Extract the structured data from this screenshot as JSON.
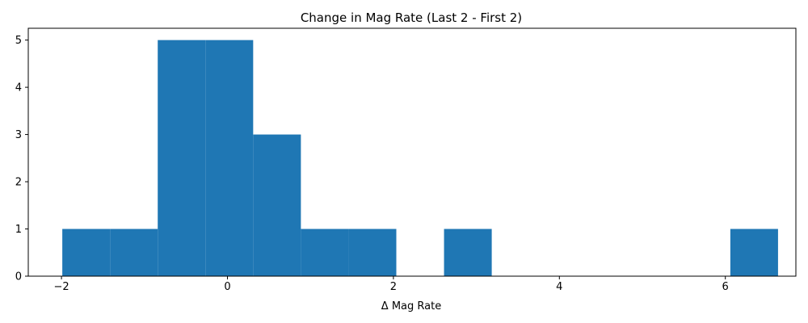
{
  "chart_data": {
    "type": "bar",
    "title": "Change in Mag Rate (Last 2 - First 2)",
    "xlabel": "Δ Mag Rate",
    "ylabel": "",
    "bin_edges": [
      -1.99,
      -1.415,
      -0.84,
      -0.265,
      0.31,
      0.885,
      1.46,
      2.035,
      2.61,
      3.185,
      3.76,
      4.335,
      4.91,
      5.485,
      6.06,
      6.635
    ],
    "values": [
      1,
      1,
      5,
      5,
      3,
      1,
      1,
      0,
      1,
      0,
      0,
      0,
      0,
      0,
      1
    ],
    "xlim": [
      -2.4,
      6.85
    ],
    "ylim": [
      0,
      5.25
    ],
    "xticks": [
      -2,
      0,
      2,
      4,
      6
    ],
    "xtick_labels": [
      "−2",
      "0",
      "2",
      "4",
      "6"
    ],
    "yticks": [
      0,
      1,
      2,
      3,
      4,
      5
    ],
    "ytick_labels": [
      "0",
      "1",
      "2",
      "3",
      "4",
      "5"
    ],
    "bar_color": "#1f77b4",
    "grid": false,
    "legend": "none"
  }
}
